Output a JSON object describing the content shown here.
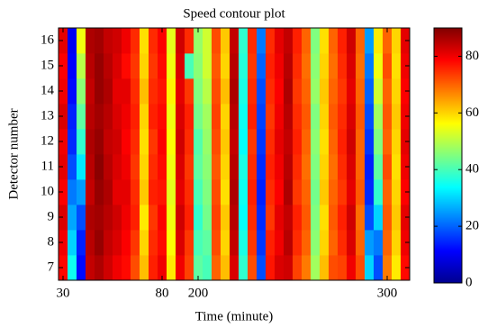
{
  "chart_data": {
    "type": "heatmap",
    "title": "Speed contour plot",
    "xlabel": "Time (minute)",
    "ylabel": "Detector number",
    "categories": [
      "30",
      null,
      null,
      null,
      null,
      null,
      null,
      null,
      null,
      null,
      null,
      "80",
      null,
      null,
      null,
      "200",
      null,
      null,
      null,
      null,
      null,
      null,
      null,
      null,
      null,
      null,
      null,
      null,
      null,
      null,
      null,
      null,
      null,
      null,
      null,
      null,
      "300",
      null,
      null
    ],
    "y": [
      7,
      8,
      9,
      10,
      11,
      12,
      13,
      14,
      15,
      16
    ],
    "ylim": [
      6.5,
      16.5
    ],
    "yticks": [
      7,
      8,
      9,
      10,
      11,
      12,
      13,
      14,
      15,
      16
    ],
    "colormap": "jet",
    "clim": [
      0,
      90
    ],
    "cticks": [
      0,
      20,
      40,
      60,
      80
    ],
    "z": [
      [
        78,
        35,
        12,
        84,
        86,
        83,
        80,
        78,
        72,
        62,
        76,
        80,
        58,
        80,
        73,
        42,
        40,
        70,
        62,
        82,
        38,
        72,
        18,
        77,
        82,
        83,
        73,
        68,
        48,
        62,
        72,
        73,
        80,
        72,
        30,
        18,
        68,
        58,
        78
      ],
      [
        80,
        30,
        14,
        85,
        88,
        84,
        82,
        79,
        74,
        60,
        75,
        78,
        56,
        82,
        74,
        40,
        42,
        72,
        60,
        84,
        36,
        74,
        16,
        76,
        80,
        85,
        75,
        70,
        46,
        60,
        70,
        75,
        82,
        70,
        25,
        22,
        70,
        60,
        80
      ],
      [
        82,
        26,
        18,
        86,
        87,
        85,
        83,
        80,
        76,
        58,
        74,
        79,
        55,
        83,
        76,
        38,
        44,
        73,
        61,
        85,
        34,
        75,
        15,
        74,
        81,
        84,
        76,
        71,
        45,
        59,
        71,
        76,
        83,
        69,
        18,
        30,
        71,
        61,
        81
      ],
      [
        79,
        22,
        25,
        84,
        88,
        86,
        81,
        81,
        75,
        61,
        76,
        77,
        54,
        81,
        75,
        40,
        45,
        72,
        59,
        86,
        35,
        76,
        14,
        75,
        79,
        86,
        74,
        70,
        44,
        61,
        70,
        74,
        81,
        71,
        15,
        38,
        70,
        60,
        79
      ],
      [
        81,
        18,
        32,
        85,
        89,
        85,
        82,
        80,
        74,
        60,
        75,
        78,
        55,
        82,
        74,
        42,
        46,
        71,
        60,
        85,
        36,
        75,
        15,
        76,
        80,
        85,
        75,
        69,
        45,
        60,
        69,
        75,
        82,
        70,
        14,
        42,
        72,
        59,
        80
      ],
      [
        80,
        15,
        38,
        86,
        88,
        84,
        83,
        79,
        75,
        59,
        74,
        79,
        56,
        83,
        75,
        41,
        47,
        72,
        61,
        84,
        34,
        74,
        16,
        75,
        81,
        84,
        76,
        70,
        46,
        59,
        70,
        76,
        83,
        70,
        16,
        45,
        70,
        60,
        81
      ],
      [
        82,
        14,
        42,
        85,
        87,
        85,
        82,
        80,
        76,
        60,
        76,
        78,
        55,
        82,
        76,
        44,
        48,
        73,
        60,
        85,
        35,
        76,
        17,
        74,
        80,
        85,
        75,
        71,
        45,
        60,
        71,
        75,
        82,
        71,
        18,
        48,
        71,
        61,
        80
      ],
      [
        80,
        12,
        46,
        84,
        88,
        86,
        81,
        81,
        75,
        62,
        75,
        77,
        57,
        81,
        74,
        45,
        50,
        72,
        62,
        86,
        36,
        75,
        18,
        75,
        79,
        86,
        74,
        70,
        47,
        61,
        70,
        74,
        81,
        70,
        20,
        52,
        70,
        60,
        79
      ],
      [
        79,
        11,
        50,
        85,
        88,
        85,
        82,
        78,
        74,
        60,
        74,
        78,
        55,
        82,
        40,
        46,
        52,
        71,
        60,
        85,
        37,
        74,
        20,
        76,
        80,
        85,
        75,
        69,
        46,
        60,
        69,
        75,
        82,
        69,
        22,
        55,
        72,
        59,
        80
      ],
      [
        81,
        10,
        55,
        86,
        87,
        84,
        83,
        80,
        75,
        59,
        75,
        79,
        54,
        83,
        75,
        47,
        52,
        72,
        61,
        84,
        38,
        75,
        22,
        75,
        81,
        84,
        76,
        70,
        45,
        59,
        70,
        76,
        83,
        70,
        25,
        58,
        70,
        60,
        81
      ]
    ]
  }
}
